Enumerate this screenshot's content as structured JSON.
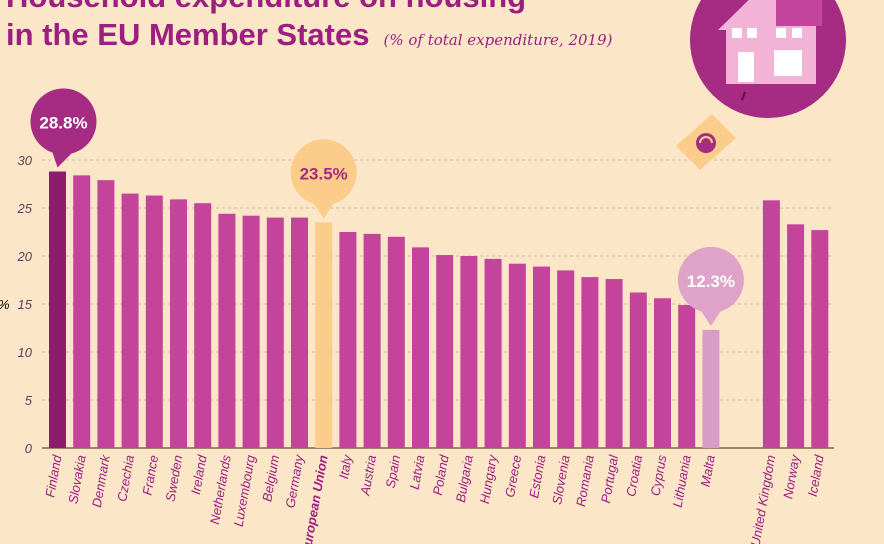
{
  "chart_data": {
    "type": "bar",
    "title_line1": "Household expenditure on housing",
    "title_line2": "in the EU Member States",
    "subtitle": "(% of total expenditure, 2019)",
    "ylabel": "%",
    "ylim": [
      0,
      30
    ],
    "yticks": [
      "0",
      "5",
      "10",
      "15",
      "20",
      "25",
      "30"
    ],
    "grid": true,
    "categories": [
      "Finland",
      "Slovakia",
      "Denmark",
      "Czechia",
      "France",
      "Sweden",
      "Ireland",
      "Netherlands",
      "Luxembourg",
      "Belgium",
      "Germany",
      "European Union",
      "Italy",
      "Austria",
      "Spain",
      "Latvia",
      "Poland",
      "Bulgaria",
      "Hungary",
      "Greece",
      "Estonia",
      "Slovenia",
      "Romania",
      "Portugal",
      "Croatia",
      "Cyprus",
      "Lithuania",
      "Malta",
      "United Kingdom",
      "Norway",
      "Iceland"
    ],
    "values": [
      28.8,
      28.4,
      27.9,
      26.5,
      26.3,
      25.9,
      25.5,
      24.4,
      24.2,
      24.0,
      24.0,
      23.5,
      22.5,
      22.3,
      22.0,
      20.9,
      20.1,
      20.0,
      19.7,
      19.2,
      18.9,
      18.5,
      17.8,
      17.6,
      16.2,
      15.6,
      14.9,
      12.3,
      25.8,
      23.3,
      22.7
    ],
    "highlights": [
      {
        "category": "Finland",
        "label": "28.8%"
      },
      {
        "category": "European Union",
        "label": "23.5%"
      },
      {
        "category": "Malta",
        "label": "12.3%"
      }
    ],
    "colors": {
      "bar": "#c4449b",
      "finland": "#8e1c6c",
      "eu": "#fbcc8a",
      "malta": "#d99cc6",
      "text": "#9c1e80",
      "grid": "#d0b8a8"
    }
  }
}
